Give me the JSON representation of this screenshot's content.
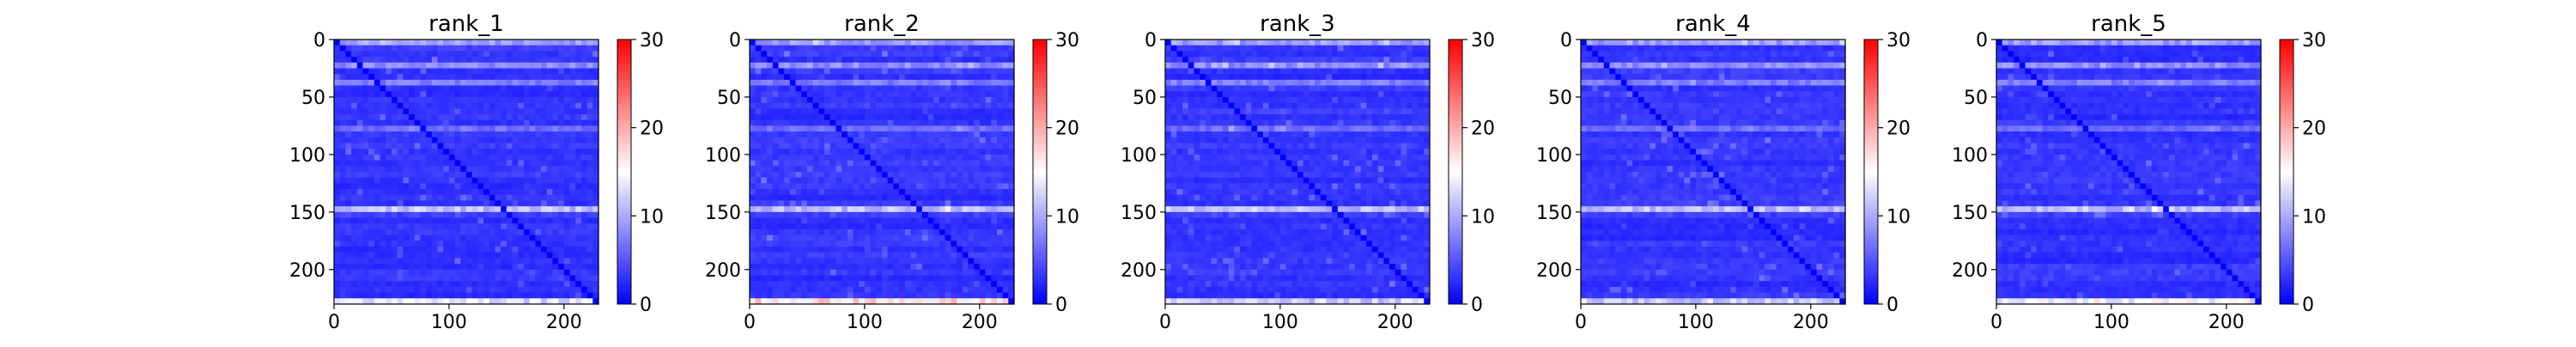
{
  "chart_data": [
    {
      "type": "heatmap",
      "title": "rank_1",
      "xlabel": "",
      "ylabel": "",
      "x_ticks": [
        0,
        100,
        200
      ],
      "y_ticks": [
        0,
        50,
        100,
        150,
        200
      ],
      "xlim": [
        0,
        230
      ],
      "ylim": [
        230,
        0
      ],
      "matrix_size": 230,
      "colorbar": {
        "range": [
          0,
          30
        ],
        "ticks": [
          0,
          10,
          20,
          30
        ],
        "colormap": "bwr"
      },
      "features": {
        "diagonal": "blue",
        "bright_rows_approx": [
          0,
          20,
          35,
          75,
          145,
          225
        ],
        "bright_row_values_approx": [
          10,
          9,
          8,
          7,
          12,
          14
        ]
      }
    },
    {
      "type": "heatmap",
      "title": "rank_2",
      "xlabel": "",
      "ylabel": "",
      "x_ticks": [
        0,
        100,
        200
      ],
      "y_ticks": [
        0,
        50,
        100,
        150,
        200
      ],
      "xlim": [
        0,
        230
      ],
      "ylim": [
        230,
        0
      ],
      "matrix_size": 230,
      "colorbar": {
        "range": [
          0,
          30
        ],
        "ticks": [
          0,
          10,
          20,
          30
        ],
        "colormap": "bwr"
      },
      "features": {
        "diagonal": "blue",
        "bright_rows_approx": [
          0,
          20,
          35,
          75,
          145,
          225
        ],
        "bright_row_values_approx": [
          10,
          9,
          8,
          7,
          12,
          18
        ]
      }
    },
    {
      "type": "heatmap",
      "title": "rank_3",
      "xlabel": "",
      "ylabel": "",
      "x_ticks": [
        0,
        100,
        200
      ],
      "y_ticks": [
        0,
        50,
        100,
        150,
        200
      ],
      "xlim": [
        0,
        230
      ],
      "ylim": [
        230,
        0
      ],
      "matrix_size": 230,
      "colorbar": {
        "range": [
          0,
          30
        ],
        "ticks": [
          0,
          10,
          20,
          30
        ],
        "colormap": "bwr"
      },
      "features": {
        "diagonal": "blue",
        "bright_rows_approx": [
          0,
          20,
          35,
          75,
          145,
          225
        ],
        "bright_row_values_approx": [
          10,
          9,
          8,
          7,
          12,
          13
        ]
      }
    },
    {
      "type": "heatmap",
      "title": "rank_4",
      "xlabel": "",
      "ylabel": "",
      "x_ticks": [
        0,
        100,
        200
      ],
      "y_ticks": [
        0,
        50,
        100,
        150,
        200
      ],
      "xlim": [
        0,
        230
      ],
      "ylim": [
        230,
        0
      ],
      "matrix_size": 230,
      "colorbar": {
        "range": [
          0,
          30
        ],
        "ticks": [
          0,
          10,
          20,
          30
        ],
        "colormap": "bwr"
      },
      "features": {
        "diagonal": "blue",
        "bright_rows_approx": [
          0,
          20,
          35,
          75,
          145,
          225
        ],
        "bright_row_values_approx": [
          10,
          9,
          8,
          7,
          12,
          13
        ]
      }
    },
    {
      "type": "heatmap",
      "title": "rank_5",
      "xlabel": "",
      "ylabel": "",
      "x_ticks": [
        0,
        100,
        200
      ],
      "y_ticks": [
        0,
        50,
        100,
        150,
        200
      ],
      "xlim": [
        0,
        230
      ],
      "ylim": [
        230,
        0
      ],
      "matrix_size": 230,
      "colorbar": {
        "range": [
          0,
          30
        ],
        "ticks": [
          0,
          10,
          20,
          30
        ],
        "colormap": "bwr"
      },
      "features": {
        "diagonal": "blue",
        "bright_rows_approx": [
          0,
          20,
          35,
          75,
          145,
          225
        ],
        "bright_row_values_approx": [
          10,
          9,
          8,
          7,
          12,
          16
        ]
      }
    }
  ],
  "colors": {
    "low": "#0000ff",
    "mid": "#ffffff",
    "high": "#ff0000",
    "axis": "#000000"
  }
}
